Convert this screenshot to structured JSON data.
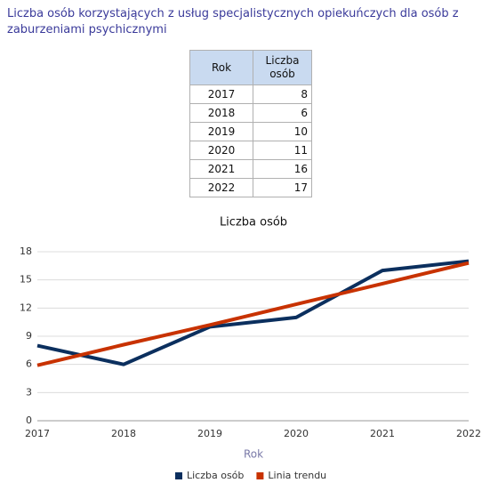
{
  "header": {
    "title": "Liczba osób korzystających z usług specjalistycznych opiekuńczych dla osób z zaburzeniami psychicznymi"
  },
  "table": {
    "columns": [
      "Rok",
      "Liczba osób"
    ],
    "rows": [
      [
        2017,
        8
      ],
      [
        2018,
        6
      ],
      [
        2019,
        10
      ],
      [
        2020,
        11
      ],
      [
        2021,
        16
      ],
      [
        2022,
        17
      ]
    ]
  },
  "chart_data": {
    "type": "line",
    "title": "Liczba osób",
    "x_label": "Rok",
    "categories": [
      "2017",
      "2018",
      "2019",
      "2020",
      "2021",
      "2022"
    ],
    "series": [
      {
        "name": "Liczba osób",
        "color": "#0b2f5e",
        "values": [
          8,
          6,
          10,
          11,
          16,
          17
        ]
      },
      {
        "name": "Linia trendu",
        "color": "#c83200",
        "values": [
          5.9,
          8.1,
          10.2,
          12.4,
          14.6,
          16.8
        ]
      }
    ],
    "ylim": [
      0,
      18
    ],
    "yticks": [
      0,
      3,
      6,
      9,
      12,
      15,
      18
    ],
    "grid": true,
    "legend": "bottom"
  }
}
